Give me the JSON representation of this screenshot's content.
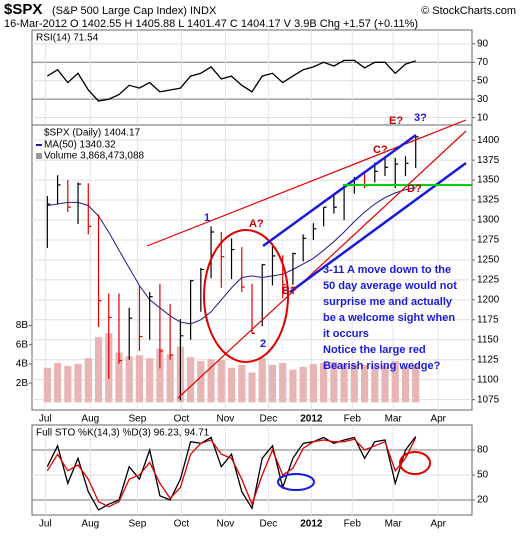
{
  "header": {
    "title": "$SPX",
    "subtitle": "(S&P 500 Large Cap Index) INDX",
    "copyright": "© StockCharts.com",
    "quote": "16-Mar-2012  O 1402.55  H 1405.88  L 1401.47  C 1404.17  V 3.9B  Chg +1.57 (+0.11%)"
  },
  "annotations": [
    "1",
    "A?",
    "2",
    "B?",
    "C?",
    "D?",
    "E?",
    "3?"
  ],
  "note": [
    "3-11 A move down to the",
    "50 day average would not",
    "surprise me and actually",
    "be a welcome sight when",
    "it occurs",
    "Notice the large red",
    "Bearish rising wedge?"
  ],
  "chart_data": [
    {
      "type": "line",
      "label": "RSI(14) 71.54",
      "grid": true,
      "x": [
        3,
        4,
        5,
        6,
        7,
        8,
        9,
        10,
        11,
        12,
        13,
        14,
        15,
        16,
        17,
        18,
        19,
        20,
        21,
        22,
        23,
        24,
        25,
        26,
        27,
        28,
        29,
        30,
        31,
        32,
        33,
        34,
        35,
        36,
        37,
        38,
        39
      ],
      "xlim": [
        1.5,
        44.5
      ],
      "xticks": [
        {
          "value": 2.8,
          "label": "Jul"
        },
        {
          "value": 7.2,
          "label": "Aug"
        },
        {
          "value": 11.8,
          "label": "Sep"
        },
        {
          "value": 16.1,
          "label": "Oct"
        },
        {
          "value": 20.4,
          "label": "Nov"
        },
        {
          "value": 24.6,
          "label": "Dec"
        },
        {
          "value": 28.8,
          "label": "2012"
        },
        {
          "value": 32.8,
          "label": "Feb"
        },
        {
          "value": 36.8,
          "label": "Mar"
        },
        {
          "value": 41.2,
          "label": "Apr"
        }
      ],
      "ylim": [
        2,
        105
      ],
      "yticks": [
        90,
        70,
        50,
        30,
        10
      ],
      "series": [
        {
          "name": "RSI(14)",
          "color": "#000000",
          "values": [
            55,
            62,
            48,
            58,
            40,
            28,
            30,
            35,
            45,
            42,
            48,
            38,
            40,
            42,
            55,
            58,
            65,
            52,
            55,
            45,
            38,
            55,
            58,
            48,
            55,
            62,
            65,
            70,
            66,
            72,
            72,
            64,
            70,
            70,
            58,
            68,
            71.54
          ]
        }
      ]
    },
    {
      "type": "ohlc",
      "label": "$SPX (Daily) 1404.17",
      "grid": true,
      "up_color": "#000000",
      "down_color": "#e00000",
      "x": [
        3,
        4,
        5,
        6,
        7,
        8,
        9,
        10,
        11,
        12,
        13,
        14,
        15,
        16,
        17,
        18,
        19,
        20,
        21,
        22,
        23,
        24,
        25,
        26,
        27,
        28,
        29,
        30,
        31,
        32,
        33,
        34,
        35,
        36,
        37,
        38,
        39
      ],
      "xlim": [
        1.5,
        44.5
      ],
      "xticks": [
        {
          "value": 2.8,
          "label": "Jul"
        },
        {
          "value": 7.2,
          "label": "Aug"
        },
        {
          "value": 11.8,
          "label": "Sep"
        },
        {
          "value": 16.1,
          "label": "Oct"
        },
        {
          "value": 20.4,
          "label": "Nov"
        },
        {
          "value": 24.6,
          "label": "Dec"
        },
        {
          "value": 28.8,
          "label": "2012"
        },
        {
          "value": 32.8,
          "label": "Feb"
        },
        {
          "value": 36.8,
          "label": "Mar"
        },
        {
          "value": 41.2,
          "label": "Apr"
        }
      ],
      "ylim": [
        1062,
        1419
      ],
      "yticks": [
        1400,
        1375,
        1350,
        1325,
        1300,
        1275,
        1250,
        1225,
        1200,
        1175,
        1150,
        1125,
        1100,
        1075
      ],
      "high": [
        1330,
        1356,
        1350,
        1347,
        1346,
        1307,
        1208,
        1208,
        1190,
        1218,
        1210,
        1220,
        1195,
        1176,
        1225,
        1240,
        1292,
        1285,
        1277,
        1266,
        1220,
        1245,
        1267,
        1256,
        1259,
        1282,
        1296,
        1316,
        1333,
        1345,
        1354,
        1360,
        1372,
        1378,
        1378,
        1380,
        1405.88
      ],
      "low": [
        1265,
        1320,
        1310,
        1295,
        1282,
        1166,
        1101,
        1120,
        1125,
        1136,
        1150,
        1114,
        1125,
        1074,
        1150,
        1185,
        1227,
        1215,
        1226,
        1210,
        1158,
        1167,
        1218,
        1202,
        1219,
        1248,
        1275,
        1292,
        1308,
        1300,
        1333,
        1340,
        1347,
        1355,
        1340,
        1355,
        1365
      ],
      "close": [
        1320,
        1344,
        1316,
        1345,
        1292,
        1199,
        1178,
        1124,
        1177,
        1154,
        1204,
        1136,
        1131,
        1155,
        1224,
        1238,
        1285,
        1254,
        1263,
        1216,
        1158,
        1244,
        1255,
        1219,
        1258,
        1277,
        1289,
        1316,
        1316,
        1344,
        1351,
        1343,
        1361,
        1366,
        1370,
        1371,
        1404.17
      ],
      "ma": {
        "name": "MA(50) 1340.32",
        "color": "#1c1c8c",
        "values": [
          1318,
          1320,
          1322,
          1322,
          1318,
          1305,
          1285,
          1262,
          1240,
          1218,
          1200,
          1190,
          1180,
          1172,
          1170,
          1175,
          1185,
          1200,
          1215,
          1228,
          1230,
          1228,
          1230,
          1232,
          1238,
          1245,
          1252,
          1262,
          1273,
          1285,
          1298,
          1310,
          1320,
          1328,
          1334,
          1338,
          1340.32
        ]
      },
      "volume": {
        "name": "Volume 3,868,473,088",
        "color": "#e8b4b4",
        "ylim": [
          -0.8,
          28.9
        ],
        "yticks": [
          {
            "value": 8,
            "label": "8B"
          },
          {
            "value": 6,
            "label": "6B"
          },
          {
            "value": 4,
            "label": "4B"
          },
          {
            "value": 2,
            "label": "2B"
          }
        ],
        "values": [
          3.6,
          4.1,
          3.8,
          4.0,
          4.6,
          6.8,
          7.2,
          5.2,
          4.8,
          4.9,
          4.6,
          5.6,
          5.0,
          5.8,
          4.7,
          4.3,
          4.5,
          4.4,
          3.6,
          3.9,
          3.1,
          4.6,
          3.9,
          4.1,
          3.4,
          3.7,
          4.0,
          4.1,
          4.2,
          4.0,
          3.9,
          3.9,
          3.8,
          3.8,
          4.3,
          3.7,
          3.868473088
        ]
      }
    },
    {
      "type": "line",
      "label": "Full STO %K(14,3) %D(3) 96.23, 94.71",
      "grid": true,
      "x": [
        3,
        4,
        5,
        6,
        7,
        8,
        9,
        10,
        11,
        12,
        13,
        14,
        15,
        16,
        17,
        18,
        19,
        20,
        21,
        22,
        23,
        24,
        25,
        26,
        27,
        28,
        29,
        30,
        31,
        32,
        33,
        34,
        35,
        36,
        37,
        38,
        39
      ],
      "xlim": [
        1.5,
        44.5
      ],
      "xticks": [
        {
          "value": 2.8,
          "label": "Jul"
        },
        {
          "value": 7.2,
          "label": "Aug"
        },
        {
          "value": 11.8,
          "label": "Sep"
        },
        {
          "value": 16.1,
          "label": "Oct"
        },
        {
          "value": 20.4,
          "label": "Nov"
        },
        {
          "value": 24.6,
          "label": "Dec"
        },
        {
          "value": 28.8,
          "label": "2012"
        },
        {
          "value": 32.8,
          "label": "Feb"
        },
        {
          "value": 36.8,
          "label": "Mar"
        },
        {
          "value": 41.2,
          "label": "Apr"
        }
      ],
      "ylim": [
        2,
        110
      ],
      "yticks": [
        80,
        50,
        20
      ],
      "series": [
        {
          "name": "%K(14,3)",
          "color": "#000000",
          "values": [
            60,
            85,
            40,
            70,
            30,
            8,
            15,
            20,
            60,
            45,
            80,
            25,
            20,
            45,
            90,
            88,
            95,
            60,
            75,
            30,
            10,
            70,
            85,
            35,
            70,
            88,
            90,
            95,
            88,
            92,
            95,
            70,
            90,
            92,
            40,
            80,
            96.23
          ]
        },
        {
          "name": "%D(3)",
          "color": "#e00000",
          "values": [
            55,
            75,
            55,
            62,
            45,
            18,
            12,
            18,
            45,
            50,
            65,
            40,
            22,
            35,
            75,
            88,
            92,
            75,
            70,
            45,
            15,
            50,
            80,
            50,
            58,
            82,
            90,
            92,
            90,
            90,
            93,
            80,
            85,
            90,
            55,
            70,
            94.71
          ]
        }
      ]
    }
  ]
}
